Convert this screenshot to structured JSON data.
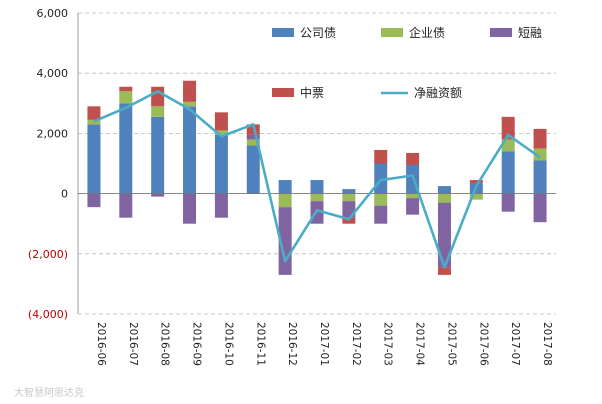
{
  "chart_data": {
    "type": "bar",
    "stacked": true,
    "title": "",
    "xlabel": "",
    "ylabel": "",
    "ylim": [
      -4000,
      6000
    ],
    "yticks": [
      6000,
      4000,
      2000,
      0,
      -2000,
      -4000
    ],
    "ytick_labels": [
      "6,000",
      "4,000",
      "2,000",
      "0",
      "(2,000)",
      "(4,000)"
    ],
    "negative_tick_color": "#c00000",
    "grid": true,
    "legend_position": "top-right",
    "categories": [
      "2016-06",
      "2016-07",
      "2016-08",
      "2016-09",
      "2016-10",
      "2016-11",
      "2016-12",
      "2017-01",
      "2017-02",
      "2017-03",
      "2017-04",
      "2017-05",
      "2017-06",
      "2017-07",
      "2017-08"
    ],
    "series": [
      {
        "name": "公司债",
        "color": "#4f81bd",
        "values": [
          2300,
          3000,
          2550,
          2900,
          1950,
          1600,
          450,
          450,
          150,
          1000,
          950,
          250,
          350,
          1400,
          1100
        ]
      },
      {
        "name": "企业债",
        "color": "#9bbb59",
        "values": [
          150,
          400,
          350,
          150,
          150,
          200,
          -450,
          -250,
          -250,
          -400,
          -150,
          -300,
          -200,
          400,
          400
        ]
      },
      {
        "name": "短融",
        "color": "#8064a2",
        "values": [
          -450,
          -800,
          -100,
          -1000,
          -800,
          150,
          -2250,
          -750,
          -550,
          -600,
          -550,
          -2150,
          0,
          -600,
          -950
        ]
      },
      {
        "name": "中票",
        "color": "#c0504d",
        "values": [
          450,
          150,
          650,
          700,
          600,
          350,
          0,
          0,
          -200,
          450,
          400,
          -250,
          100,
          750,
          650
        ]
      }
    ],
    "line": {
      "name": "净融资额",
      "color": "#4bacc6",
      "values": [
        2400,
        2850,
        3400,
        2800,
        1900,
        2300,
        -2250,
        -550,
        -850,
        450,
        600,
        -2450,
        250,
        1950,
        1200
      ]
    }
  },
  "watermark": "大智慧阿思达克"
}
